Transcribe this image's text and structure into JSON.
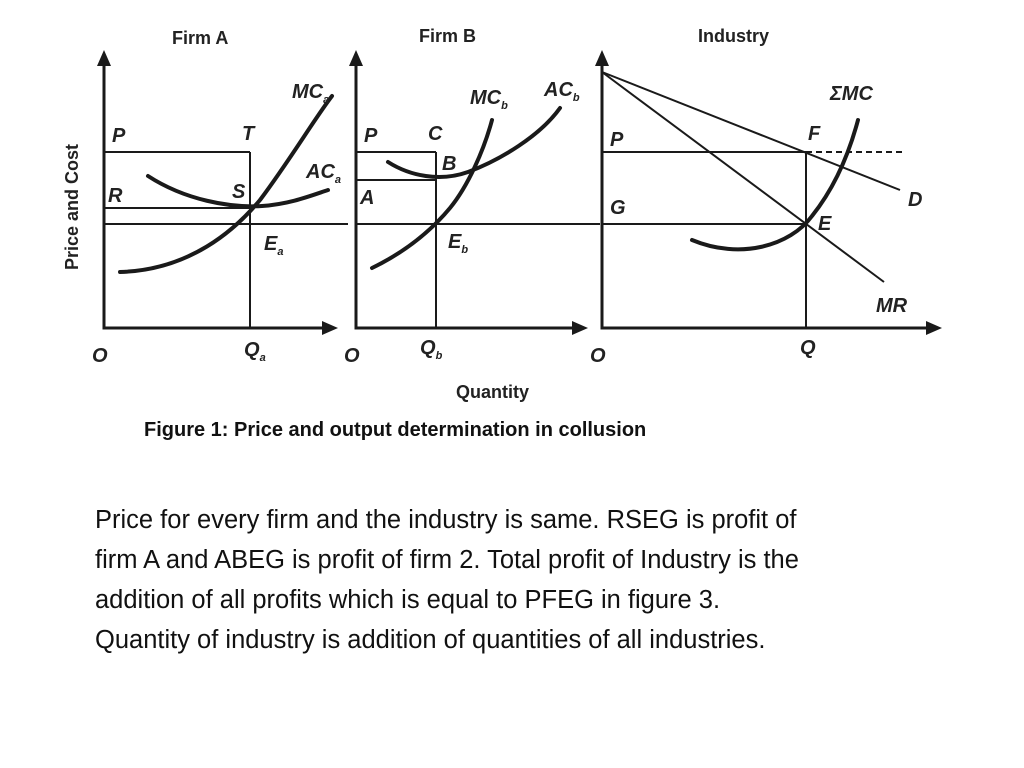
{
  "figure": {
    "panels": [
      {
        "title": "Firm A",
        "curves": [
          "MC",
          "AC"
        ],
        "curve_subscript": "a"
      },
      {
        "title": "Firm B",
        "curves": [
          "MC",
          "AC"
        ],
        "curve_subscript": "b"
      },
      {
        "title": "Industry",
        "curves": [
          "ΣMC",
          "D",
          "MR"
        ]
      }
    ],
    "y_axis_label": "Price and Cost",
    "x_axis_label": "Quantity",
    "origin_label": "O",
    "labels": {
      "firm_a": {
        "P": "P",
        "T": "T",
        "R": "R",
        "S": "S",
        "E": "E",
        "E_sub": "a",
        "Q": "Q",
        "Q_sub": "a",
        "MC": "MC",
        "MC_sub": "a",
        "AC": "AC",
        "AC_sub": "a"
      },
      "firm_b": {
        "P": "P",
        "C": "C",
        "B": "B",
        "A": "A",
        "E": "E",
        "E_sub": "b",
        "Q": "Q",
        "Q_sub": "b",
        "MC": "MC",
        "MC_sub": "b",
        "AC": "AC",
        "AC_sub": "b"
      },
      "industry": {
        "P": "P",
        "G": "G",
        "F": "F",
        "E": "E",
        "D": "D",
        "MR": "MR",
        "SMC": "ΣMC",
        "Q": "Q"
      }
    }
  },
  "caption": "Figure 1: Price and output determination in collusion",
  "body_lines": [
    "Price for every firm and the industry is same. RSEG is profit of",
    "firm A and ABEG is profit of firm 2. Total profit of Industry is the",
    "addition of all profits which is equal to PFEG in figure 3.",
    "Quantity of industry is addition of quantities of all industries."
  ]
}
